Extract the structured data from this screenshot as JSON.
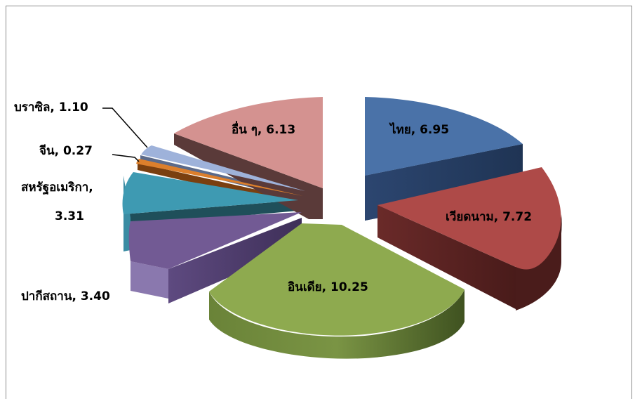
{
  "chart_data": {
    "type": "pie",
    "title": "",
    "slices": [
      {
        "name": "ไทย",
        "value": 6.95,
        "label": "ไทย, 6.95",
        "color": "#4A72A8"
      },
      {
        "name": "เวียดนาม",
        "value": 7.72,
        "label": "เวียดนาม, 7.72",
        "color": "#AE4A48"
      },
      {
        "name": "อินเดีย",
        "value": 10.25,
        "label": "อินเดีย, 10.25",
        "color": "#8EAA4F"
      },
      {
        "name": "ปากีสถาน",
        "value": 3.4,
        "label": "ปากีสถาน, 3.40",
        "color": "#725A94"
      },
      {
        "name": "สหรัฐอเมริกา",
        "value": 3.31,
        "label_line1": "สหรัฐอเมริกา,",
        "label_line2": "3.31",
        "color": "#3E9AB2"
      },
      {
        "name": "จีน",
        "value": 0.27,
        "label": "จีน, 0.27",
        "color": "#DC7F2C"
      },
      {
        "name": "บราซิล",
        "value": 1.1,
        "label": "บราซิล, 1.10",
        "color": "#9EB2DA"
      },
      {
        "name": "อื่น ๆ",
        "value": 6.13,
        "label": "อื่น ๆ, 6.13",
        "color": "#D49290"
      }
    ],
    "style": "3d-exploded"
  }
}
